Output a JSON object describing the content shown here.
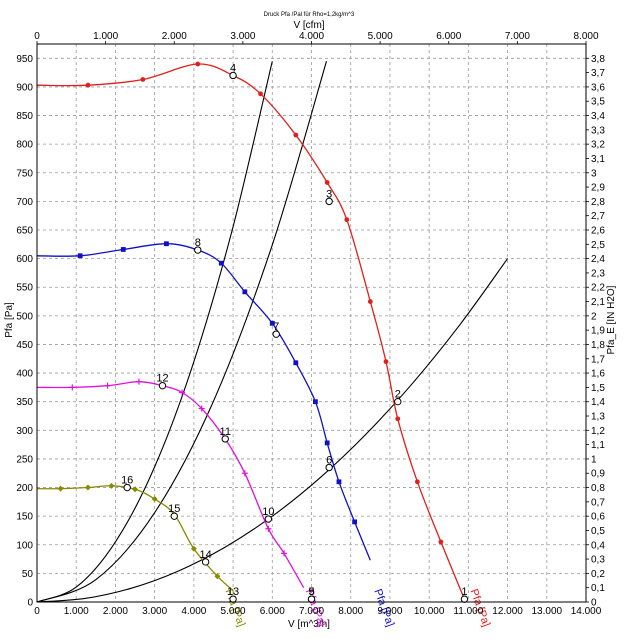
{
  "chart_data": {
    "type": "line",
    "title": "Druck Pfa /Pal für Rho=1,2kg/m^3",
    "xlabel": "V [m^3/h]",
    "ylabel": "Pfa [Pa]",
    "x2label": "V [cfm]",
    "y2label": "Pfa_E [IN H2O]",
    "xlim": [
      0,
      14000
    ],
    "ylim": [
      0,
      975
    ],
    "x2lim": [
      0,
      8000
    ],
    "y2lim": [
      0,
      3.9
    ],
    "grid": true,
    "x_ticks": [
      "0",
      "1.000",
      "2.000",
      "3.000",
      "4.000",
      "5.000",
      "6.000",
      "7.000",
      "8.000",
      "9.000",
      "10.000",
      "11.000",
      "12.000",
      "13.000",
      "14.000"
    ],
    "y_ticks": [
      "0",
      "50",
      "100",
      "150",
      "200",
      "250",
      "300",
      "350",
      "400",
      "450",
      "500",
      "550",
      "600",
      "650",
      "700",
      "750",
      "800",
      "850",
      "900",
      "950"
    ],
    "x2_ticks": [
      "0",
      "1.000",
      "2.000",
      "3.000",
      "4.000",
      "5.000",
      "6.000",
      "7.000",
      "8.000"
    ],
    "y2_ticks": [
      "0",
      "0,1",
      "0,2",
      "0,3",
      "0,4",
      "0,5",
      "0,6",
      "0,7",
      "0,8",
      "0,9",
      "1",
      "1,1",
      "1,2",
      "1,3",
      "1,4",
      "1,5",
      "1,6",
      "1,7",
      "1,8",
      "1,9",
      "2",
      "2,1",
      "2,2",
      "2,3",
      "2,4",
      "2,5",
      "2,6",
      "2,7",
      "2,8",
      "2,9",
      "3",
      "3,1",
      "3,2",
      "3,3",
      "3,4",
      "3,5",
      "3,6",
      "3,7",
      "3,8"
    ],
    "series": [
      {
        "name": "Pfa [Pa]",
        "color": "#e0201c",
        "marker": "circle",
        "x": [
          0,
          1300,
          2700,
          4100,
          5000,
          5700,
          6600,
          7400,
          7900,
          8500,
          8900,
          9200,
          9700,
          10300,
          10900
        ],
        "y": [
          903,
          903,
          913,
          940,
          920,
          888,
          816,
          733,
          668,
          525,
          420,
          320,
          210,
          105,
          5
        ],
        "label_pos": [
          11050,
          20
        ]
      },
      {
        "name": "Pfa [Pa]",
        "color": "#1010c8",
        "marker": "square",
        "x": [
          0,
          1100,
          2200,
          3300,
          4100,
          4700,
          5300,
          6000,
          6600,
          7100,
          7400,
          7700,
          8100,
          8500
        ],
        "y": [
          605,
          605,
          616,
          626,
          615,
          592,
          542,
          487,
          418,
          350,
          278,
          210,
          140,
          73
        ],
        "label_pos": [
          8600,
          20
        ]
      },
      {
        "name": "Pfa [Pa]",
        "color": "#e010e0",
        "marker": "plus",
        "x": [
          0,
          900,
          1800,
          2600,
          3200,
          3700,
          4200,
          4800,
          5300,
          5900,
          6300,
          6800
        ],
        "y": [
          375,
          375,
          378,
          385,
          378,
          366,
          338,
          285,
          225,
          128,
          85,
          25
        ],
        "label_pos": [
          6850,
          20
        ]
      },
      {
        "name": "Pfa [Pa]",
        "color": "#8a8a00",
        "marker": "diamond",
        "x": [
          0,
          600,
          1300,
          1900,
          2500,
          3000,
          3500,
          4000,
          4600,
          5000
        ],
        "y": [
          198,
          198,
          200,
          203,
          197,
          180,
          153,
          93,
          45,
          20
        ],
        "label_pos": [
          4800,
          20
        ]
      }
    ],
    "system_curves": [
      {
        "x": [
          0,
          1200,
          2400,
          3600,
          4800,
          6000,
          7200,
          8400,
          9600,
          10800,
          12000
        ],
        "y": [
          0,
          6,
          24,
          54,
          96,
          150,
          216,
          294,
          384,
          486,
          600
        ]
      },
      {
        "x": [
          0,
          1500,
          3000,
          4500,
          6000,
          7500,
          9000
        ],
        "y": [
          0,
          39,
          156,
          351,
          624,
          975,
          1404
        ]
      },
      {
        "x": [
          0,
          1000,
          2000,
          3000,
          4000,
          5000,
          6000
        ],
        "y": [
          0,
          26,
          105,
          236,
          420,
          656,
          945
        ]
      }
    ],
    "points": [
      {
        "label": "1",
        "x": 10900,
        "y": 5
      },
      {
        "label": "2",
        "x": 9200,
        "y": 350
      },
      {
        "label": "3",
        "x": 7450,
        "y": 700
      },
      {
        "label": "4",
        "x": 5000,
        "y": 920
      },
      {
        "label": "5",
        "x": 7000,
        "y": 5
      },
      {
        "label": "6",
        "x": 7450,
        "y": 235
      },
      {
        "label": "7",
        "x": 6100,
        "y": 468
      },
      {
        "label": "8",
        "x": 4100,
        "y": 615
      },
      {
        "label": "9",
        "x": 7000,
        "y": 5
      },
      {
        "label": "10",
        "x": 5900,
        "y": 145
      },
      {
        "label": "11",
        "x": 4800,
        "y": 285
      },
      {
        "label": "12",
        "x": 3200,
        "y": 378
      },
      {
        "label": "13",
        "x": 5000,
        "y": 5
      },
      {
        "label": "14",
        "x": 4300,
        "y": 70
      },
      {
        "label": "15",
        "x": 3500,
        "y": 150
      },
      {
        "label": "16",
        "x": 2300,
        "y": 200
      }
    ]
  }
}
